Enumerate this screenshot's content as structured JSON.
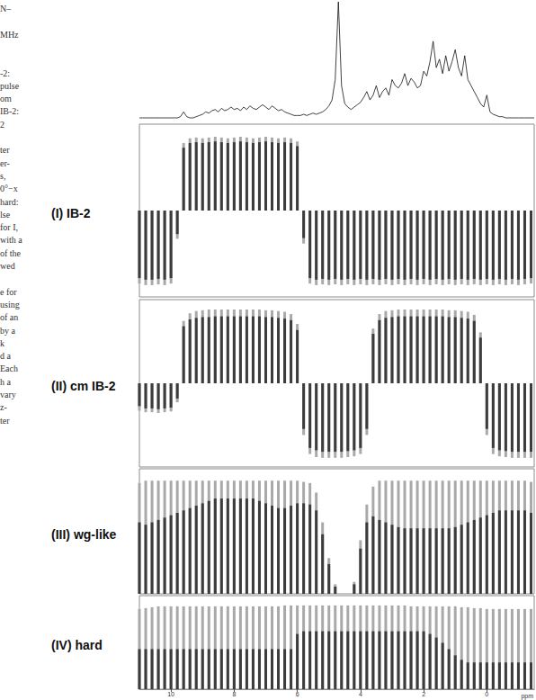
{
  "caption": {
    "lines": [
      "N–",
      null,
      "MHz",
      null,
      null,
      "-2:",
      "pulse",
      "om",
      "IB-2:",
      "2",
      null,
      "ter",
      "er-",
      "s,",
      "0°−x",
      "hard:",
      "lse",
      "for I,",
      "with a",
      "of the",
      "wed",
      null,
      "e for",
      "using",
      "of an",
      "by a",
      "k",
      "d a",
      "Each",
      "h a",
      "vary",
      "z-",
      "ter"
    ]
  },
  "chart_data": [
    {
      "type": "line",
      "color": "#111111",
      "xlim": [
        11.0,
        -1.5
      ],
      "ylim": [
        0,
        1
      ],
      "tick_labels": false,
      "x": [
        11.0,
        10.9,
        10.8,
        10.7,
        10.6,
        10.5,
        10.4,
        10.3,
        10.2,
        10.1,
        10.0,
        9.9,
        9.8,
        9.7,
        9.6,
        9.5,
        9.4,
        9.3,
        9.2,
        9.1,
        9.0,
        8.9,
        8.8,
        8.7,
        8.6,
        8.5,
        8.4,
        8.3,
        8.2,
        8.1,
        8.0,
        7.9,
        7.8,
        7.7,
        7.6,
        7.5,
        7.4,
        7.3,
        7.2,
        7.1,
        7.0,
        6.9,
        6.8,
        6.7,
        6.6,
        6.5,
        6.4,
        6.3,
        6.2,
        6.1,
        6.0,
        5.9,
        5.8,
        5.7,
        5.6,
        5.5,
        5.4,
        5.3,
        5.2,
        5.1,
        5.0,
        4.9,
        4.8,
        4.7,
        4.6,
        4.5,
        4.4,
        4.3,
        4.2,
        4.1,
        4.0,
        3.9,
        3.8,
        3.7,
        3.6,
        3.5,
        3.4,
        3.3,
        3.2,
        3.1,
        3.0,
        2.9,
        2.8,
        2.7,
        2.6,
        2.5,
        2.4,
        2.3,
        2.2,
        2.1,
        2.0,
        1.9,
        1.8,
        1.7,
        1.6,
        1.5,
        1.4,
        1.3,
        1.2,
        1.1,
        1.0,
        0.9,
        0.8,
        0.7,
        0.6,
        0.5,
        0.4,
        0.3,
        0.2,
        0.1,
        0.0,
        -0.1,
        -0.2,
        -0.3,
        -0.4,
        -0.5,
        -0.6,
        -0.7,
        -0.8,
        -0.9,
        -1.0,
        -1.1,
        -1.2,
        -1.3,
        -1.4,
        -1.5
      ],
      "values": [
        0.03,
        0.03,
        0.03,
        0.03,
        0.03,
        0.03,
        0.03,
        0.03,
        0.03,
        0.03,
        0.03,
        0.03,
        0.03,
        0.04,
        0.08,
        0.04,
        0.03,
        0.03,
        0.04,
        0.05,
        0.06,
        0.08,
        0.07,
        0.09,
        0.1,
        0.08,
        0.11,
        0.09,
        0.1,
        0.12,
        0.1,
        0.11,
        0.09,
        0.12,
        0.1,
        0.13,
        0.11,
        0.1,
        0.12,
        0.14,
        0.12,
        0.1,
        0.13,
        0.11,
        0.09,
        0.1,
        0.08,
        0.07,
        0.06,
        0.05,
        0.05,
        0.05,
        0.06,
        0.05,
        0.06,
        0.07,
        0.06,
        0.07,
        0.08,
        0.1,
        0.13,
        0.18,
        0.35,
        1.0,
        0.3,
        0.15,
        0.12,
        0.1,
        0.12,
        0.14,
        0.16,
        0.2,
        0.25,
        0.18,
        0.22,
        0.3,
        0.2,
        0.25,
        0.28,
        0.22,
        0.35,
        0.3,
        0.28,
        0.32,
        0.4,
        0.3,
        0.36,
        0.33,
        0.28,
        0.3,
        0.42,
        0.38,
        0.5,
        0.67,
        0.45,
        0.52,
        0.4,
        0.55,
        0.42,
        0.5,
        0.6,
        0.45,
        0.38,
        0.55,
        0.35,
        0.3,
        0.25,
        0.2,
        0.15,
        0.12,
        0.22,
        0.08,
        0.06,
        0.05,
        0.04,
        0.04,
        0.03,
        0.03,
        0.03,
        0.03,
        0.03,
        0.03,
        0.03,
        0.03,
        0.03,
        0.03
      ]
    },
    {
      "type": "bar",
      "title": "(I) IB-2",
      "xlim": [
        11.0,
        -1.5
      ],
      "ylim": [
        -1.1,
        1.1
      ],
      "tick_labels": false,
      "x": [
        11.0,
        10.8,
        10.6,
        10.4,
        10.2,
        10.0,
        9.8,
        9.6,
        9.4,
        9.2,
        9.0,
        8.8,
        8.6,
        8.4,
        8.2,
        8.0,
        7.8,
        7.6,
        7.4,
        7.2,
        7.0,
        6.8,
        6.6,
        6.4,
        6.2,
        6.0,
        5.8,
        5.6,
        5.4,
        5.2,
        5.0,
        4.8,
        4.6,
        4.4,
        4.2,
        4.0,
        3.8,
        3.6,
        3.4,
        3.2,
        3.0,
        2.8,
        2.6,
        2.4,
        2.2,
        2.0,
        1.8,
        1.6,
        1.4,
        1.2,
        1.0,
        0.8,
        0.6,
        0.4,
        0.2,
        0,
        -0.2,
        -0.4,
        -0.6,
        -0.8,
        -1.0,
        -1.2,
        -1.4
      ],
      "series": [
        {
          "color": "#a9a9a9",
          "values": [
            -0.93,
            -0.95,
            -0.95,
            -0.94,
            -0.95,
            -0.93,
            -0.36,
            0.86,
            0.92,
            0.93,
            0.92,
            0.93,
            0.94,
            0.93,
            0.92,
            0.93,
            0.94,
            0.93,
            0.92,
            0.93,
            0.94,
            0.93,
            0.92,
            0.93,
            0.92,
            0.88,
            -0.42,
            -0.93,
            -0.95,
            -0.94,
            -0.95,
            -0.94,
            -0.95,
            -0.94,
            -0.95,
            -0.94,
            -0.95,
            -0.94,
            -0.95,
            -0.94,
            -0.95,
            -0.94,
            -0.95,
            -0.94,
            -0.95,
            -0.94,
            -0.95,
            -0.94,
            -0.95,
            -0.94,
            -0.95,
            -0.94,
            -0.95,
            -0.94,
            -0.95,
            -0.94,
            -0.95,
            -0.94,
            -0.95,
            -0.94,
            -0.95,
            -0.94,
            -0.93
          ]
        },
        {
          "color": "#3c3c3c",
          "values": [
            -0.86,
            -0.88,
            -0.88,
            -0.87,
            -0.88,
            -0.86,
            -0.3,
            0.8,
            0.86,
            0.87,
            0.86,
            0.87,
            0.88,
            0.87,
            0.86,
            0.87,
            0.88,
            0.87,
            0.86,
            0.87,
            0.88,
            0.87,
            0.86,
            0.87,
            0.86,
            0.82,
            -0.35,
            -0.86,
            -0.88,
            -0.87,
            -0.88,
            -0.87,
            -0.88,
            -0.87,
            -0.88,
            -0.87,
            -0.88,
            -0.87,
            -0.88,
            -0.87,
            -0.88,
            -0.87,
            -0.88,
            -0.87,
            -0.88,
            -0.87,
            -0.88,
            -0.87,
            -0.88,
            -0.87,
            -0.88,
            -0.87,
            -0.88,
            -0.87,
            -0.88,
            -0.87,
            -0.88,
            -0.87,
            -0.88,
            -0.87,
            -0.88,
            -0.87,
            -0.86
          ]
        }
      ]
    },
    {
      "type": "bar",
      "title": "(II) cm IB-2",
      "xlim": [
        11.0,
        -1.5
      ],
      "ylim": [
        -1.1,
        1.1
      ],
      "tick_labels": false,
      "x": [
        11.0,
        10.8,
        10.6,
        10.4,
        10.2,
        10.0,
        9.8,
        9.6,
        9.4,
        9.2,
        9.0,
        8.8,
        8.6,
        8.4,
        8.2,
        8.0,
        7.8,
        7.6,
        7.4,
        7.2,
        7.0,
        6.8,
        6.6,
        6.4,
        6.2,
        6.0,
        5.8,
        5.6,
        5.4,
        5.2,
        5.0,
        4.8,
        4.6,
        4.4,
        4.2,
        4.0,
        3.8,
        3.6,
        3.4,
        3.2,
        3.0,
        2.8,
        2.6,
        2.4,
        2.2,
        2.0,
        1.8,
        1.6,
        1.4,
        1.2,
        1.0,
        0.8,
        0.6,
        0.4,
        0.2,
        0,
        -0.2,
        -0.4,
        -0.6,
        -0.8,
        -1.0,
        -1.2,
        -1.4
      ],
      "series": [
        {
          "color": "#a9a9a9",
          "values": [
            -0.36,
            -0.38,
            -0.38,
            -0.39,
            -0.38,
            -0.37,
            -0.25,
            0.82,
            0.92,
            0.95,
            0.96,
            0.97,
            0.97,
            0.97,
            0.97,
            0.97,
            0.97,
            0.97,
            0.97,
            0.97,
            0.96,
            0.96,
            0.95,
            0.94,
            0.91,
            0.78,
            -0.68,
            -0.93,
            -0.97,
            -0.98,
            -0.98,
            -0.98,
            -0.98,
            -0.97,
            -0.96,
            -0.93,
            -0.68,
            0.72,
            0.91,
            0.95,
            0.96,
            0.97,
            0.97,
            0.97,
            0.97,
            0.97,
            0.97,
            0.97,
            0.97,
            0.96,
            0.96,
            0.95,
            0.94,
            0.9,
            0.67,
            -0.68,
            -0.93,
            -0.96,
            -0.97,
            -0.98,
            -0.98,
            -0.98,
            -0.98
          ]
        },
        {
          "color": "#3c3c3c",
          "values": [
            -0.3,
            -0.33,
            -0.33,
            -0.34,
            -0.33,
            -0.32,
            -0.2,
            0.75,
            0.84,
            0.86,
            0.87,
            0.87,
            0.88,
            0.88,
            0.88,
            0.88,
            0.88,
            0.88,
            0.88,
            0.88,
            0.87,
            0.87,
            0.86,
            0.85,
            0.83,
            0.7,
            -0.6,
            -0.85,
            -0.88,
            -0.9,
            -0.9,
            -0.9,
            -0.9,
            -0.89,
            -0.88,
            -0.85,
            -0.6,
            0.65,
            0.83,
            0.86,
            0.87,
            0.88,
            0.88,
            0.88,
            0.88,
            0.88,
            0.88,
            0.88,
            0.88,
            0.87,
            0.87,
            0.86,
            0.85,
            0.82,
            0.6,
            -0.6,
            -0.85,
            -0.88,
            -0.89,
            -0.9,
            -0.9,
            -0.9,
            -0.9
          ]
        }
      ]
    },
    {
      "type": "bar",
      "title": "(III) wg-like",
      "xlim": [
        11.0,
        -1.5
      ],
      "ylim": [
        0,
        1.05
      ],
      "tick_labels": false,
      "x": [
        11.0,
        10.8,
        10.6,
        10.4,
        10.2,
        10.0,
        9.8,
        9.6,
        9.4,
        9.2,
        9.0,
        8.8,
        8.6,
        8.4,
        8.2,
        8.0,
        7.8,
        7.6,
        7.4,
        7.2,
        7.0,
        6.8,
        6.6,
        6.4,
        6.2,
        6.0,
        5.8,
        5.6,
        5.4,
        5.2,
        5.0,
        4.8,
        4.6,
        4.4,
        4.2,
        4.0,
        3.8,
        3.6,
        3.4,
        3.2,
        3.0,
        2.8,
        2.6,
        2.4,
        2.2,
        2.0,
        1.8,
        1.6,
        1.4,
        1.2,
        1.0,
        0.8,
        0.6,
        0.4,
        0.2,
        0,
        -0.2,
        -0.4,
        -0.6,
        -0.8,
        -1.0,
        -1.2,
        -1.4
      ],
      "series": [
        {
          "color": "#a9a9a9",
          "values": [
            0.93,
            0.95,
            0.95,
            0.95,
            0.95,
            0.95,
            0.95,
            0.95,
            0.95,
            0.95,
            0.95,
            0.95,
            0.95,
            0.95,
            0.95,
            0.95,
            0.95,
            0.95,
            0.95,
            0.95,
            0.95,
            0.95,
            0.95,
            0.95,
            0.95,
            0.95,
            0.94,
            0.93,
            0.85,
            0.6,
            0.3,
            0.08,
            0,
            0,
            0.1,
            0.45,
            0.75,
            0.9,
            0.95,
            0.95,
            0.95,
            0.95,
            0.95,
            0.95,
            0.95,
            0.95,
            0.95,
            0.95,
            0.95,
            0.95,
            0.95,
            0.95,
            0.95,
            0.95,
            0.95,
            0.95,
            0.95,
            0.95,
            0.95,
            0.95,
            0.95,
            0.95,
            0.94
          ]
        },
        {
          "color": "#3c3c3c",
          "values": [
            0.6,
            0.58,
            0.6,
            0.62,
            0.64,
            0.66,
            0.68,
            0.7,
            0.72,
            0.74,
            0.76,
            0.78,
            0.8,
            0.8,
            0.8,
            0.8,
            0.8,
            0.8,
            0.8,
            0.78,
            0.76,
            0.74,
            0.72,
            0.72,
            0.74,
            0.76,
            0.76,
            0.75,
            0.7,
            0.5,
            0.25,
            0.06,
            0,
            0,
            0.08,
            0.38,
            0.6,
            0.65,
            0.62,
            0.6,
            0.58,
            0.56,
            0.55,
            0.55,
            0.55,
            0.55,
            0.55,
            0.55,
            0.55,
            0.55,
            0.56,
            0.58,
            0.6,
            0.62,
            0.64,
            0.66,
            0.68,
            0.7,
            0.7,
            0.7,
            0.7,
            0.7,
            0.68
          ]
        }
      ]
    },
    {
      "type": "bar",
      "title": "(IV) hard",
      "xlabel": "ppm",
      "xlim": [
        11.0,
        -1.5
      ],
      "ylim": [
        0,
        1.05
      ],
      "xticks": [
        10,
        8,
        6,
        4,
        2,
        0
      ],
      "tick_labels": "x",
      "x": [
        11.0,
        10.8,
        10.6,
        10.4,
        10.2,
        10.0,
        9.8,
        9.6,
        9.4,
        9.2,
        9.0,
        8.8,
        8.6,
        8.4,
        8.2,
        8.0,
        7.8,
        7.6,
        7.4,
        7.2,
        7.0,
        6.8,
        6.6,
        6.4,
        6.2,
        6.0,
        5.8,
        5.6,
        5.4,
        5.2,
        5.0,
        4.8,
        4.6,
        4.4,
        4.2,
        4.0,
        3.8,
        3.6,
        3.4,
        3.2,
        3.0,
        2.8,
        2.6,
        2.4,
        2.2,
        2.0,
        1.8,
        1.6,
        1.4,
        1.2,
        1.0,
        0.8,
        0.6,
        0.4,
        0.2,
        0,
        -0.2,
        -0.4,
        -0.6,
        -0.8,
        -1.0,
        -1.2,
        -1.4
      ],
      "series": [
        {
          "color": "#a9a9a9",
          "values": [
            0.9,
            0.91,
            0.92,
            0.93,
            0.93,
            0.93,
            0.93,
            0.93,
            0.93,
            0.93,
            0.93,
            0.93,
            0.93,
            0.93,
            0.93,
            0.93,
            0.93,
            0.93,
            0.93,
            0.93,
            0.93,
            0.93,
            0.93,
            0.94,
            0.94,
            0.94,
            0.94,
            0.94,
            0.94,
            0.94,
            0.94,
            0.94,
            0.94,
            0.94,
            0.94,
            0.94,
            0.94,
            0.94,
            0.94,
            0.94,
            0.94,
            0.94,
            0.94,
            0.93,
            0.93,
            0.93,
            0.93,
            0.93,
            0.93,
            0.93,
            0.93,
            0.92,
            0.92,
            0.91,
            0.91,
            0.9,
            0.9,
            0.9,
            0.9,
            0.9,
            0.9,
            0.9,
            0.9
          ]
        },
        {
          "color": "#3c3c3c",
          "values": [
            0.45,
            0.45,
            0.45,
            0.45,
            0.45,
            0.45,
            0.45,
            0.45,
            0.45,
            0.45,
            0.45,
            0.45,
            0.45,
            0.45,
            0.45,
            0.45,
            0.45,
            0.45,
            0.45,
            0.45,
            0.45,
            0.45,
            0.45,
            0.45,
            0.45,
            0.62,
            0.65,
            0.65,
            0.65,
            0.65,
            0.65,
            0.65,
            0.65,
            0.65,
            0.65,
            0.65,
            0.65,
            0.65,
            0.65,
            0.65,
            0.65,
            0.65,
            0.65,
            0.65,
            0.65,
            0.65,
            0.62,
            0.58,
            0.52,
            0.45,
            0.38,
            0.33,
            0.3,
            0.3,
            0.3,
            0.3,
            0.3,
            0.3,
            0.3,
            0.3,
            0.3,
            0.3,
            0.3
          ]
        }
      ]
    }
  ]
}
